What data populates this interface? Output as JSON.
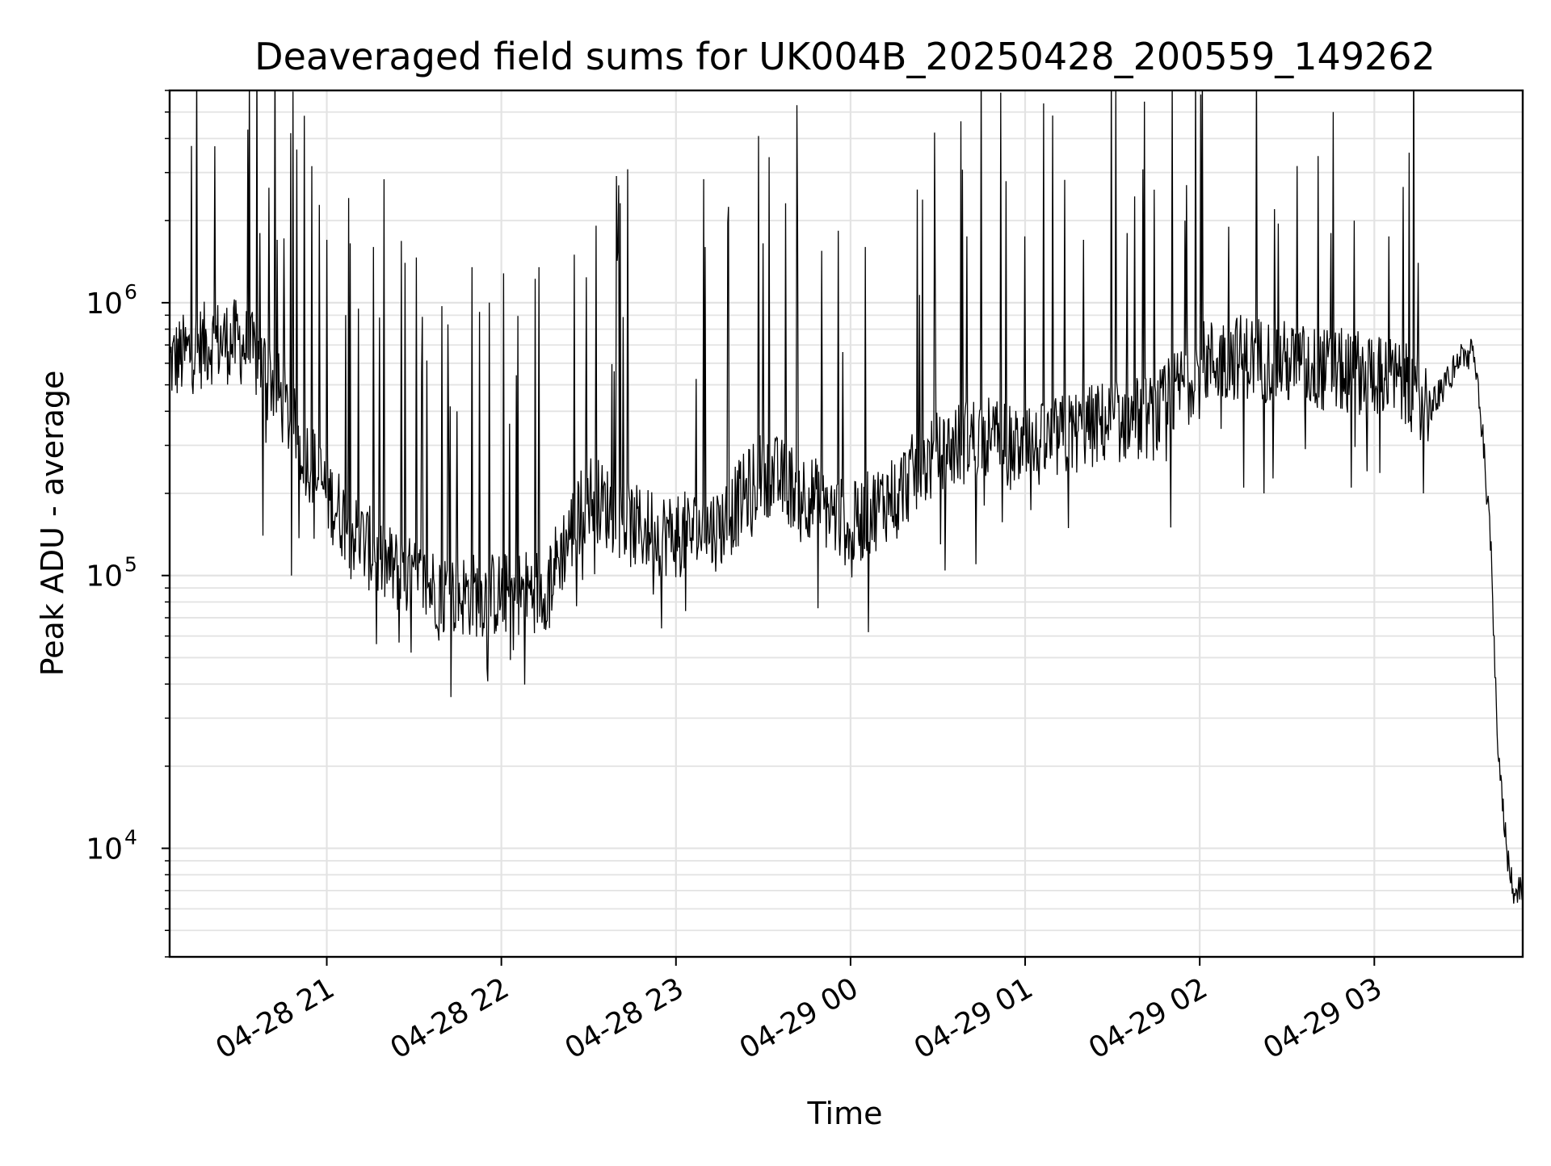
{
  "chart_data": {
    "type": "line",
    "title": "Deaveraged field sums for UK004B_20250428_200559_149262",
    "xlabel": "Time",
    "ylabel": "Peak ADU - average",
    "yscale": "log",
    "grid": true,
    "xlim": [
      "2025-04-28 20:06",
      "2025-04-29 03:51"
    ],
    "ylim": [
      4000,
      6000000
    ],
    "x_ticks": [
      {
        "value": "2025-04-28 21:00",
        "label": "04-28 21"
      },
      {
        "value": "2025-04-28 22:00",
        "label": "04-28 22"
      },
      {
        "value": "2025-04-28 23:00",
        "label": "04-28 23"
      },
      {
        "value": "2025-04-29 00:00",
        "label": "04-29 00"
      },
      {
        "value": "2025-04-29 01:00",
        "label": "04-29 01"
      },
      {
        "value": "2025-04-29 02:00",
        "label": "04-29 02"
      },
      {
        "value": "2025-04-29 03:00",
        "label": "04-29 03"
      }
    ],
    "y_ticks": [
      {
        "value": 10000,
        "base": "10",
        "exponent": "4"
      },
      {
        "value": 100000,
        "base": "10",
        "exponent": "5"
      },
      {
        "value": 1000000,
        "base": "10",
        "exponent": "6"
      }
    ],
    "series": [
      {
        "color": "#000000",
        "baseline": {
          "x": [
            "2025-04-28 20:06",
            "2025-04-28 20:20",
            "2025-04-28 20:30",
            "2025-04-28 20:40",
            "2025-04-28 20:50",
            "2025-04-28 21:00",
            "2025-04-28 21:10",
            "2025-04-28 21:20",
            "2025-04-28 21:30",
            "2025-04-28 21:45",
            "2025-04-28 22:00",
            "2025-04-28 22:15",
            "2025-04-28 22:30",
            "2025-04-28 22:45",
            "2025-04-28 23:00",
            "2025-04-28 23:15",
            "2025-04-28 23:30",
            "2025-04-28 23:45",
            "2025-04-29 00:00",
            "2025-04-29 00:15",
            "2025-04-29 00:30",
            "2025-04-29 00:45",
            "2025-04-29 01:00",
            "2025-04-29 01:15",
            "2025-04-29 01:30",
            "2025-04-29 01:45",
            "2025-04-29 02:00",
            "2025-04-29 02:15",
            "2025-04-29 02:30",
            "2025-04-29 02:45",
            "2025-04-29 03:00",
            "2025-04-29 03:10",
            "2025-04-29 03:20",
            "2025-04-29 03:30",
            "2025-04-29 03:34",
            "2025-04-29 03:37",
            "2025-04-29 03:40",
            "2025-04-29 03:42",
            "2025-04-29 03:44",
            "2025-04-29 03:46",
            "2025-04-29 03:48",
            "2025-04-29 03:51"
          ],
          "y": [
            600000,
            720000,
            720000,
            560000,
            320000,
            200000,
            140000,
            110000,
            95000,
            85000,
            85000,
            90000,
            200000,
            150000,
            140000,
            150000,
            240000,
            200000,
            150000,
            200000,
            280000,
            330000,
            280000,
            330000,
            370000,
            380000,
            600000,
            640000,
            600000,
            560000,
            560000,
            500000,
            420000,
            640000,
            650000,
            350000,
            130000,
            30000,
            15000,
            9000,
            7000,
            7000
          ]
        },
        "spikes": [
          {
            "x": "2025-04-28 20:37",
            "y": 1800000
          },
          {
            "x": "2025-04-28 20:43",
            "y": 1700000
          },
          {
            "x": "2025-04-28 21:00",
            "y": 1700000
          },
          {
            "x": "2025-04-28 21:08",
            "y": 1650000
          },
          {
            "x": "2025-04-28 21:16",
            "y": 1600000
          },
          {
            "x": "2025-04-28 21:27",
            "y": 1400000
          },
          {
            "x": "2025-04-28 21:40",
            "y": 1400000
          },
          {
            "x": "2025-04-28 21:50",
            "y": 1350000
          },
          {
            "x": "2025-04-28 22:13",
            "y": 1350000
          },
          {
            "x": "2025-04-28 22:25",
            "y": 1500000
          },
          {
            "x": "2025-04-28 22:40",
            "y": 1550000
          },
          {
            "x": "2025-04-28 22:55",
            "y": 1600000
          },
          {
            "x": "2025-04-28 23:10",
            "y": 1600000
          },
          {
            "x": "2025-04-28 23:30",
            "y": 1650000
          },
          {
            "x": "2025-04-28 23:50",
            "y": 1550000
          },
          {
            "x": "2025-04-29 00:05",
            "y": 1600000
          },
          {
            "x": "2025-04-29 00:29",
            "y": 4200000
          },
          {
            "x": "2025-04-29 00:40",
            "y": 1750000
          },
          {
            "x": "2025-04-29 01:00",
            "y": 1750000
          },
          {
            "x": "2025-04-29 01:20",
            "y": 1700000
          },
          {
            "x": "2025-04-29 01:35",
            "y": 1800000
          },
          {
            "x": "2025-04-29 01:55",
            "y": 2000000
          },
          {
            "x": "2025-04-29 02:10",
            "y": 1900000
          },
          {
            "x": "2025-04-29 02:27",
            "y": 1950000
          },
          {
            "x": "2025-04-29 02:45",
            "y": 1800000
          },
          {
            "x": "2025-04-29 02:53",
            "y": 2000000
          },
          {
            "x": "2025-04-29 03:05",
            "y": 1750000
          },
          {
            "x": "2025-04-29 03:15",
            "y": 1400000
          }
        ],
        "dips": [
          {
            "x": "2025-04-28 20:38",
            "y": 140000
          },
          {
            "x": "2025-04-28 20:48",
            "y": 100000
          },
          {
            "x": "2025-04-28 21:17",
            "y": 56000
          },
          {
            "x": "2025-04-28 21:40",
            "y": 62000
          },
          {
            "x": "2025-04-28 22:03",
            "y": 49000
          },
          {
            "x": "2025-04-28 22:55",
            "y": 64000
          },
          {
            "x": "2025-04-29 00:06",
            "y": 62000
          },
          {
            "x": "2025-04-29 00:43",
            "y": 110000
          },
          {
            "x": "2025-04-29 01:50",
            "y": 150000
          },
          {
            "x": "2025-04-29 02:15",
            "y": 210000
          },
          {
            "x": "2025-04-29 02:22",
            "y": 200000
          },
          {
            "x": "2025-04-29 02:52",
            "y": 210000
          },
          {
            "x": "2025-04-29 03:17",
            "y": 200000
          }
        ]
      }
    ]
  }
}
